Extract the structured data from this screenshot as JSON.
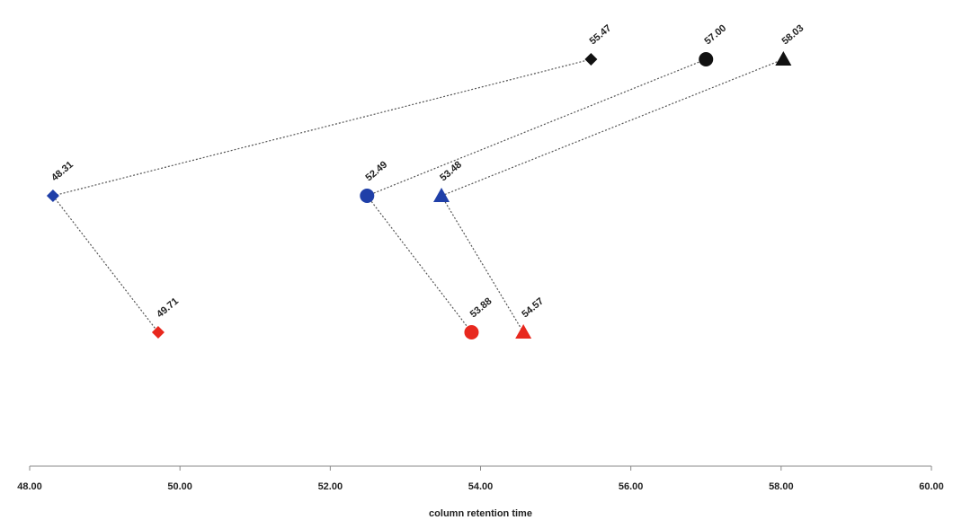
{
  "chart_data": {
    "type": "scatter",
    "title": "",
    "xlabel": "column retention time",
    "ylabel": "",
    "xlim": [
      48.0,
      60.0
    ],
    "x_ticks": [
      "48.00",
      "50.00",
      "52.00",
      "54.00",
      "56.00",
      "58.00",
      "60.00"
    ],
    "grid": false,
    "legend": "none",
    "rows": [
      "top",
      "middle",
      "bottom"
    ],
    "row_colors": {
      "top": "#111111",
      "middle": "#1f3fa8",
      "bottom": "#e8281e"
    },
    "points": [
      {
        "id": "diamond-top",
        "shape": "diamond",
        "row": "top",
        "x": 55.47,
        "label": "55.47"
      },
      {
        "id": "circle-top",
        "shape": "circle",
        "row": "top",
        "x": 57.0,
        "label": "57.00"
      },
      {
        "id": "triangle-top",
        "shape": "triangle",
        "row": "top",
        "x": 58.03,
        "label": "58.03"
      },
      {
        "id": "diamond-middle",
        "shape": "diamond",
        "row": "middle",
        "x": 48.31,
        "label": "48.31"
      },
      {
        "id": "circle-middle",
        "shape": "circle",
        "row": "middle",
        "x": 52.49,
        "label": "52.49"
      },
      {
        "id": "triangle-middle",
        "shape": "triangle",
        "row": "middle",
        "x": 53.48,
        "label": "53.48"
      },
      {
        "id": "diamond-bottom",
        "shape": "diamond",
        "row": "bottom",
        "x": 49.71,
        "label": "49.71"
      },
      {
        "id": "circle-bottom",
        "shape": "circle",
        "row": "bottom",
        "x": 53.88,
        "label": "53.88"
      },
      {
        "id": "triangle-bottom",
        "shape": "triangle",
        "row": "bottom",
        "x": 54.57,
        "label": "54.57"
      }
    ],
    "connections": [
      [
        "diamond-middle",
        "diamond-top"
      ],
      [
        "circle-middle",
        "circle-top"
      ],
      [
        "triangle-middle",
        "triangle-top"
      ],
      [
        "diamond-middle",
        "diamond-bottom"
      ],
      [
        "circle-middle",
        "circle-bottom"
      ],
      [
        "triangle-middle",
        "triangle-bottom"
      ]
    ]
  }
}
